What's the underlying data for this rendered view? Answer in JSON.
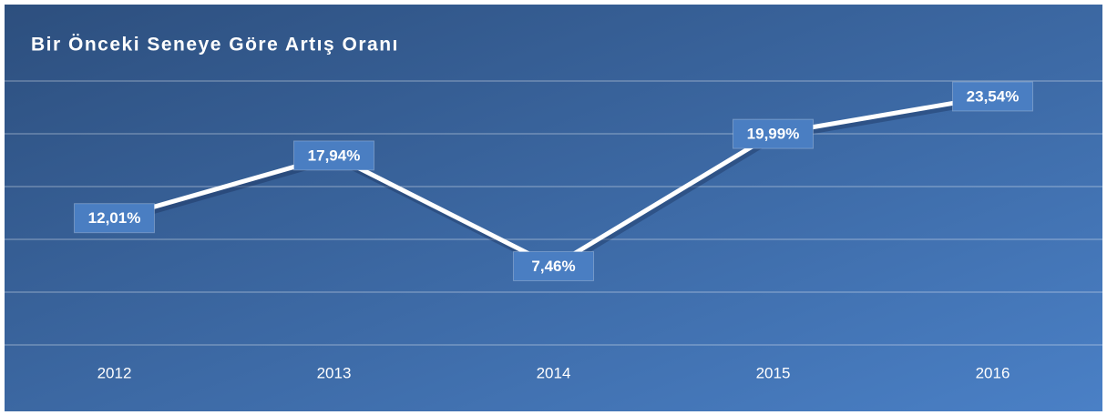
{
  "chart_data": {
    "type": "line",
    "title": "Bir Önceki Seneye Göre Artış Oranı",
    "categories": [
      "2012",
      "2013",
      "2014",
      "2015",
      "2016"
    ],
    "series": [
      {
        "color": "#ffffff",
        "values": [
          12.01,
          17.94,
          7.46,
          19.99,
          23.54
        ],
        "value_labels": [
          "12,01%",
          "17,94%",
          "7,46%",
          "19,99%",
          "23,54%"
        ]
      }
    ],
    "ylim": [
      0,
      25
    ],
    "yticks": [
      0,
      5,
      10,
      15,
      20,
      25
    ],
    "grid": true
  }
}
